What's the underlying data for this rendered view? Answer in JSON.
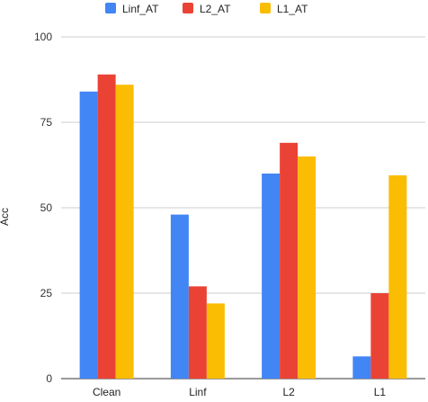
{
  "chart_data": {
    "type": "bar",
    "categories": [
      "Clean",
      "Linf",
      "L2",
      "L1"
    ],
    "series": [
      {
        "name": "Linf_AT",
        "color": "#4285F4",
        "values": [
          84,
          48,
          60,
          6.5
        ]
      },
      {
        "name": "L2_AT",
        "color": "#EA4335",
        "values": [
          89,
          27,
          69,
          25
        ]
      },
      {
        "name": "L1_AT",
        "color": "#FBBC04",
        "values": [
          86,
          22,
          65,
          59.5
        ]
      }
    ],
    "ylabel": "Acc",
    "ylim": [
      0,
      100
    ],
    "yticks": [
      0,
      25,
      50,
      75,
      100
    ],
    "grid": true,
    "legend": "top-center"
  }
}
